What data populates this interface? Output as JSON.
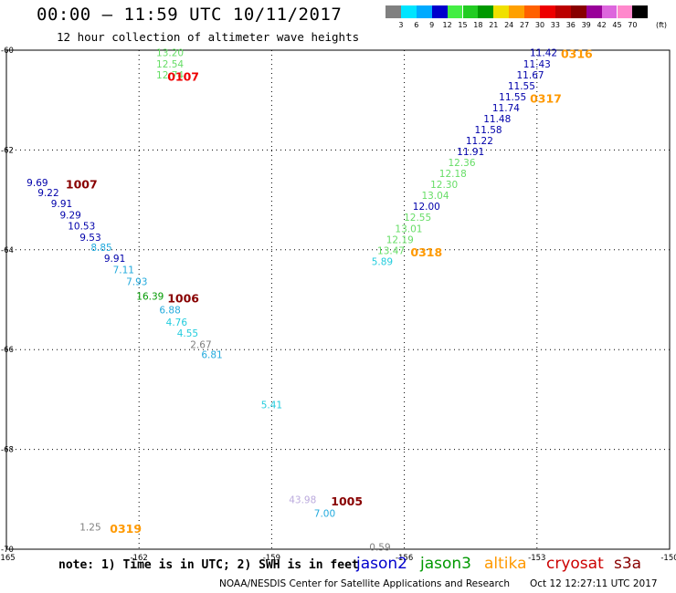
{
  "title": "00:00 – 11:59 UTC 10/11/2017",
  "subtitle": "12 hour collection of altimeter wave heights",
  "note": "note: 1) Time is in UTC; 2) SWH is in feet",
  "credit": "NOAA/NESDIS Center for Satellite Applications and Research",
  "generated": "Oct 12 12:27:11 UTC 2017",
  "colorbar": {
    "labels": [
      "3",
      "6",
      "9",
      "12",
      "15",
      "18",
      "21",
      "24",
      "27",
      "30",
      "33",
      "36",
      "39",
      "42",
      "45",
      "70"
    ],
    "unit": "(ft)",
    "colors": [
      "#808080",
      "#00e5ff",
      "#00aaff",
      "#0000cc",
      "#44ee44",
      "#22cc22",
      "#009900",
      "#f0e000",
      "#ffa000",
      "#ff6000",
      "#ee0000",
      "#bb0000",
      "#880000",
      "#990099",
      "#dd66dd",
      "#ff88cc",
      "#000000"
    ]
  },
  "legend": [
    {
      "name": "jason2",
      "color": "#0000cc"
    },
    {
      "name": "jason3",
      "color": "#009900"
    },
    {
      "name": "altika",
      "color": "#ff9900"
    },
    {
      "name": "cryosat",
      "color": "#cc0000"
    },
    {
      "name": "s3a",
      "color": "#880000"
    }
  ],
  "chart_data": {
    "type": "scatter",
    "xlim": [
      -165,
      -150
    ],
    "ylim": [
      -70,
      -60
    ],
    "xticks": [
      "-165",
      "-162",
      "-159",
      "-156",
      "-153",
      "-150"
    ],
    "yticks": [
      "-60",
      "-62",
      "-64",
      "-66",
      "-68",
      "-70"
    ],
    "grid": true,
    "points": [
      {
        "lon": -161.3,
        "lat": -60.05,
        "label": "13.20",
        "color": "#66dd66"
      },
      {
        "lon": -161.3,
        "lat": -60.27,
        "label": "12.54",
        "color": "#66dd66"
      },
      {
        "lon": -161.3,
        "lat": -60.49,
        "label": "12.74",
        "color": "#66dd66"
      },
      {
        "lon": -164.3,
        "lat": -62.65,
        "label": "9.69",
        "color": "#0000aa"
      },
      {
        "lon": -164.05,
        "lat": -62.85,
        "label": "9.22",
        "color": "#0000aa"
      },
      {
        "lon": -163.75,
        "lat": -63.07,
        "label": "9.91",
        "color": "#0000aa"
      },
      {
        "lon": -163.55,
        "lat": -63.3,
        "label": "9.29",
        "color": "#0000aa"
      },
      {
        "lon": -163.3,
        "lat": -63.52,
        "label": "10.53",
        "color": "#0000aa"
      },
      {
        "lon": -163.1,
        "lat": -63.75,
        "label": "9.53",
        "color": "#0000aa"
      },
      {
        "lon": -162.85,
        "lat": -63.95,
        "label": "8.85",
        "color": "#22aadd"
      },
      {
        "lon": -162.55,
        "lat": -64.17,
        "label": "9.91",
        "color": "#0000aa"
      },
      {
        "lon": -162.35,
        "lat": -64.4,
        "label": "7.11",
        "color": "#22aadd"
      },
      {
        "lon": -162.05,
        "lat": -64.63,
        "label": "7.93",
        "color": "#22aadd"
      },
      {
        "lon": -161.75,
        "lat": -64.93,
        "label": "16.39",
        "color": "#009900"
      },
      {
        "lon": -161.3,
        "lat": -65.2,
        "label": "6.88",
        "color": "#22aadd"
      },
      {
        "lon": -161.15,
        "lat": -65.45,
        "label": "4.76",
        "color": "#22ccdd"
      },
      {
        "lon": -160.9,
        "lat": -65.67,
        "label": "4.55",
        "color": "#22ccdd"
      },
      {
        "lon": -160.6,
        "lat": -65.9,
        "label": "2.67",
        "color": "#808080"
      },
      {
        "lon": -160.35,
        "lat": -66.1,
        "label": "6.81",
        "color": "#22aadd"
      },
      {
        "lon": -159.0,
        "lat": -67.1,
        "label": "5.41",
        "color": "#22ccdd"
      },
      {
        "lon": -158.3,
        "lat": -69.0,
        "label": "43.98",
        "color": "#bbaadd"
      },
      {
        "lon": -157.8,
        "lat": -69.28,
        "label": "7.00",
        "color": "#22aadd"
      },
      {
        "lon": -163.1,
        "lat": -69.55,
        "label": "1.25",
        "color": "#808080"
      },
      {
        "lon": -156.55,
        "lat": -69.95,
        "label": "0.59",
        "color": "#808080"
      },
      {
        "lon": -152.85,
        "lat": -60.05,
        "label": "11.42",
        "color": "#0000aa"
      },
      {
        "lon": -153.0,
        "lat": -60.27,
        "label": "11.43",
        "color": "#0000aa"
      },
      {
        "lon": -153.15,
        "lat": -60.49,
        "label": "11.67",
        "color": "#0000aa"
      },
      {
        "lon": -153.35,
        "lat": -60.71,
        "label": "11.55",
        "color": "#0000aa"
      },
      {
        "lon": -153.55,
        "lat": -60.93,
        "label": "11.55",
        "color": "#0000aa"
      },
      {
        "lon": -153.7,
        "lat": -61.15,
        "label": "11.74",
        "color": "#0000aa"
      },
      {
        "lon": -153.9,
        "lat": -61.37,
        "label": "11.48",
        "color": "#0000aa"
      },
      {
        "lon": -154.1,
        "lat": -61.59,
        "label": "11.58",
        "color": "#0000aa"
      },
      {
        "lon": -154.3,
        "lat": -61.81,
        "label": "11.22",
        "color": "#0000aa"
      },
      {
        "lon": -154.5,
        "lat": -62.03,
        "label": "11.91",
        "color": "#0000aa"
      },
      {
        "lon": -154.7,
        "lat": -62.25,
        "label": "12.36",
        "color": "#66dd66"
      },
      {
        "lon": -154.9,
        "lat": -62.47,
        "label": "12.18",
        "color": "#66dd66"
      },
      {
        "lon": -155.1,
        "lat": -62.69,
        "label": "12.30",
        "color": "#66dd66"
      },
      {
        "lon": -155.3,
        "lat": -62.91,
        "label": "13.04",
        "color": "#66dd66"
      },
      {
        "lon": -155.5,
        "lat": -63.13,
        "label": "12.00",
        "color": "#0000aa"
      },
      {
        "lon": -155.7,
        "lat": -63.35,
        "label": "12.55",
        "color": "#66dd66"
      },
      {
        "lon": -155.9,
        "lat": -63.57,
        "label": "13.01",
        "color": "#66dd66"
      },
      {
        "lon": -156.1,
        "lat": -63.79,
        "label": "12.19",
        "color": "#66dd66"
      },
      {
        "lon": -156.3,
        "lat": -64.01,
        "label": "13.47",
        "color": "#66dd66"
      },
      {
        "lon": -156.5,
        "lat": -64.23,
        "label": "5.89",
        "color": "#22ccdd"
      }
    ],
    "pass_labels": [
      {
        "lon": -161.0,
        "lat": -60.52,
        "label": "0107",
        "color": "#ee0000"
      },
      {
        "lon": -163.3,
        "lat": -62.68,
        "label": "1007",
        "color": "#880000"
      },
      {
        "lon": -161.0,
        "lat": -64.96,
        "label": "1006",
        "color": "#880000"
      },
      {
        "lon": -157.3,
        "lat": -69.03,
        "label": "1005",
        "color": "#880000"
      },
      {
        "lon": -162.3,
        "lat": -69.58,
        "label": "0319",
        "color": "#ff9900"
      },
      {
        "lon": -152.1,
        "lat": -60.06,
        "label": "0316",
        "color": "#ff9900"
      },
      {
        "lon": -152.8,
        "lat": -60.96,
        "label": "0317",
        "color": "#ff9900"
      },
      {
        "lon": -155.5,
        "lat": -64.04,
        "label": "0318",
        "color": "#ff9900"
      }
    ]
  }
}
